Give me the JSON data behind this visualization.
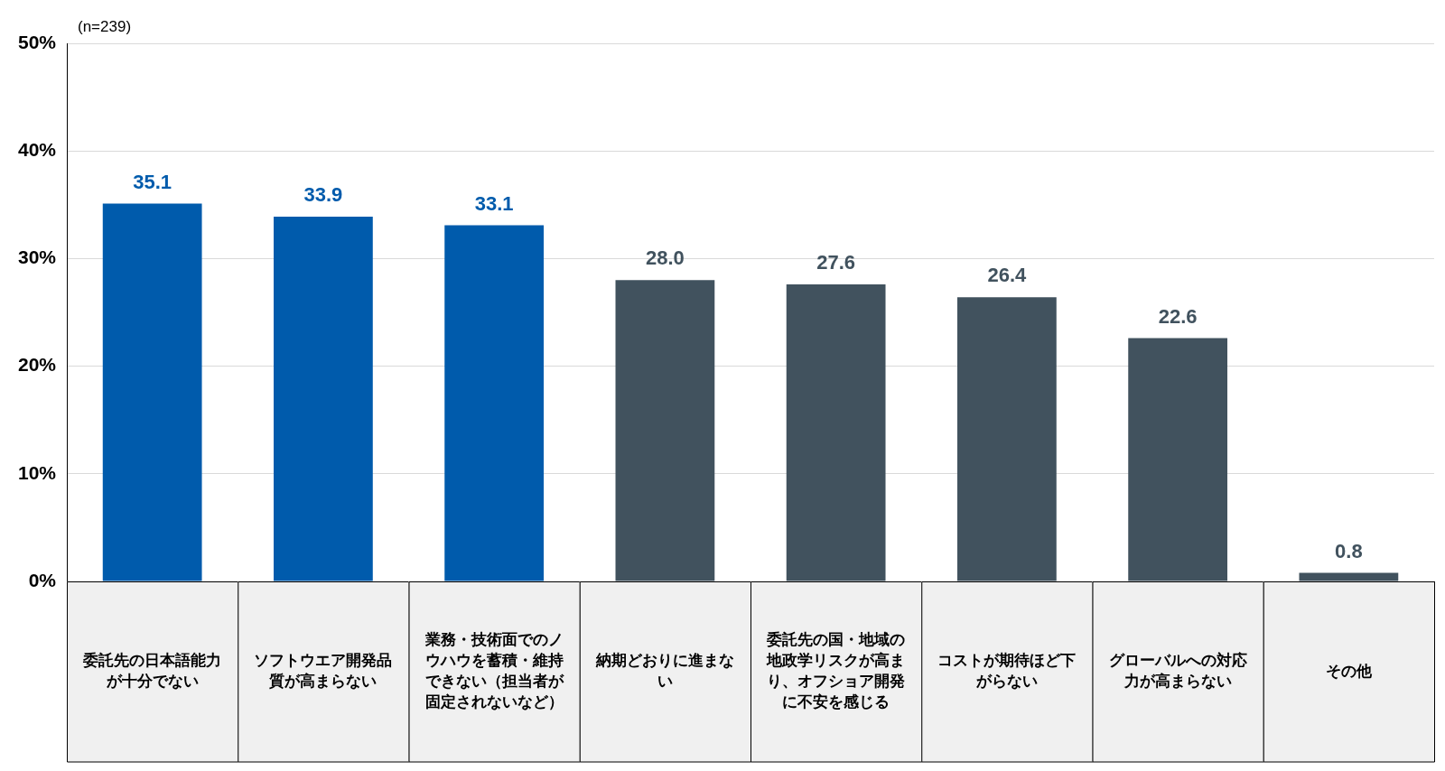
{
  "chart_data": {
    "type": "bar",
    "annotations": [
      "(n=239)"
    ],
    "categories": [
      "委託先の日本語能力が十分でない",
      "ソフトウエア開発品質が高まらない",
      "業務・技術面でのノウハウを蓄積・維持できない（担当者が固定されないなど）",
      "納期どおりに進まない",
      "委託先の国・地域の地政学リスクが高まり、オフショア開発に不安を感じる",
      "コストが期待ほど下がらない",
      "グローバルへの対応力が高まらない",
      "その他"
    ],
    "values": [
      35.1,
      33.9,
      33.1,
      28.0,
      27.6,
      26.4,
      22.6,
      0.8
    ],
    "colors": [
      "#005bac",
      "#005bac",
      "#005bac",
      "#41525e",
      "#41525e",
      "#41525e",
      "#41525e",
      "#41525e"
    ],
    "value_labels": [
      "35.1",
      "33.9",
      "33.1",
      "28.0",
      "27.6",
      "26.4",
      "22.6",
      "0.8"
    ],
    "ylim": [
      0,
      50
    ],
    "yticks": [
      {
        "value": 0,
        "label": "0%"
      },
      {
        "value": 10,
        "label": "10%"
      },
      {
        "value": 20,
        "label": "20%"
      },
      {
        "value": 30,
        "label": "30%"
      },
      {
        "value": 40,
        "label": "40%"
      },
      {
        "value": 50,
        "label": "50%"
      }
    ],
    "grid": "y"
  }
}
